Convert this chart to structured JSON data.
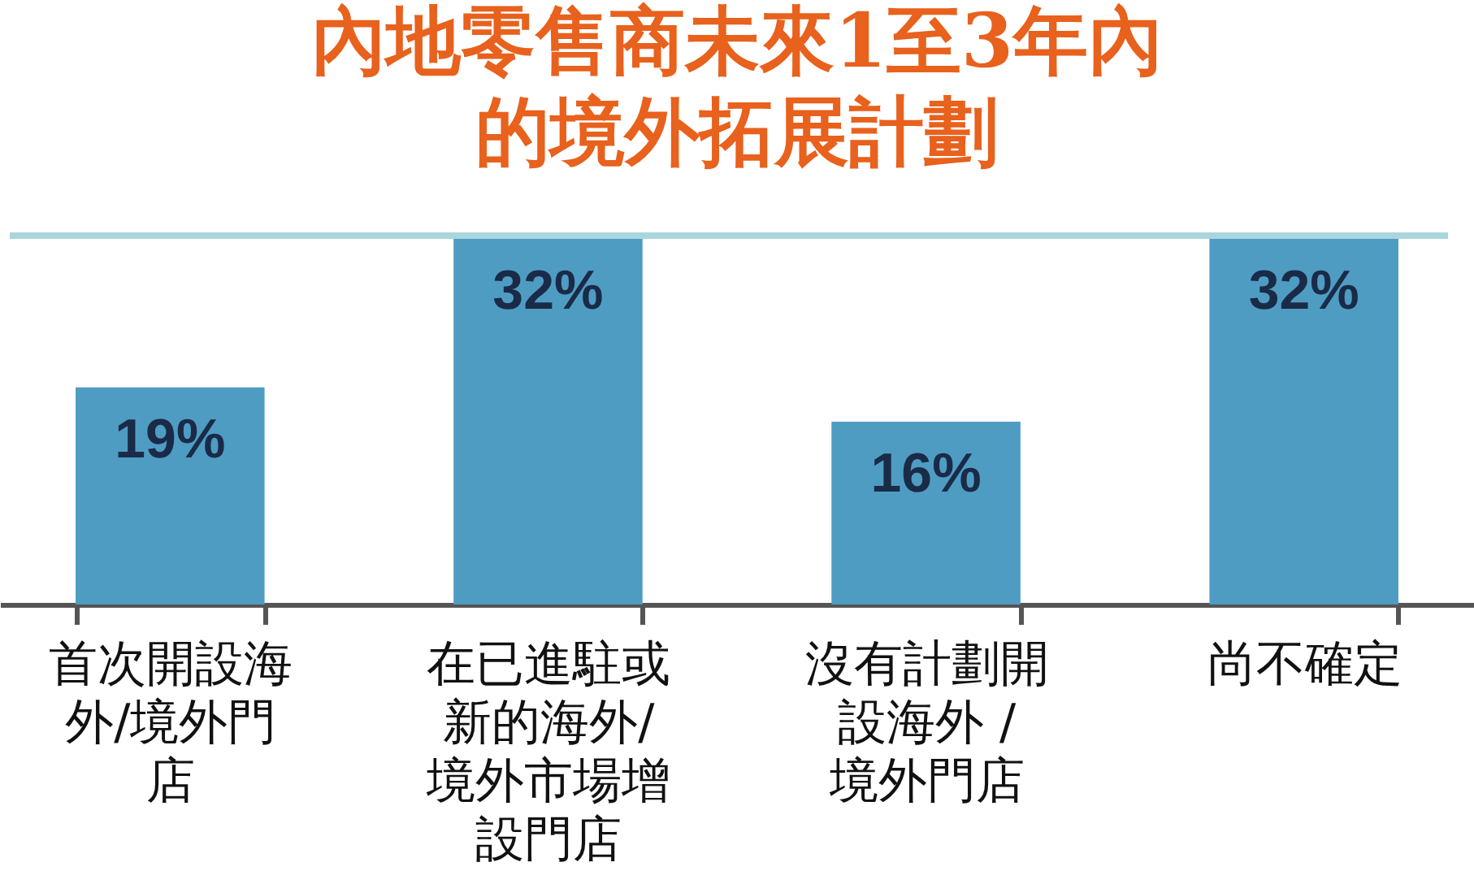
{
  "chart_data": {
    "type": "bar",
    "title": [
      "內地零售商未來1至3年內",
      "的境外拓展計劃"
    ],
    "categories": [
      "首次開設海外/境外門店",
      "在已進駐或新的海外/境外市場增設門店",
      "沒有計劃開設海外 / 境外門店",
      "尚不確定"
    ],
    "values": [
      19,
      32,
      16,
      32
    ],
    "value_labels": [
      "19%",
      "32%",
      "16%",
      "32%"
    ],
    "color": "#4f9cc3"
  }
}
